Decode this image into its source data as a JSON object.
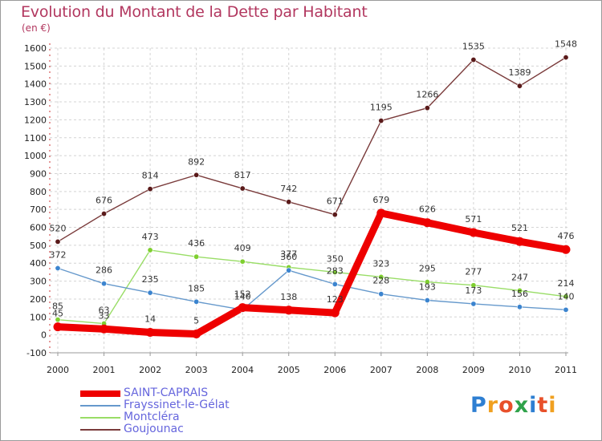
{
  "title": "Evolution du Montant de la Dette par Habitant",
  "unit": "(en €)",
  "logo": [
    {
      "ch": "P",
      "color": "#2e7fd2"
    },
    {
      "ch": "r",
      "color": "#f0a020"
    },
    {
      "ch": "o",
      "color": "#e8502a"
    },
    {
      "ch": "x",
      "color": "#2fa24a"
    },
    {
      "ch": "i",
      "color": "#2e7fd2"
    },
    {
      "ch": "t",
      "color": "#e8502a"
    },
    {
      "ch": "i",
      "color": "#f0a020"
    }
  ],
  "chart_data": {
    "type": "line",
    "x": [
      "2000",
      "2001",
      "2002",
      "2003",
      "2004",
      "2005",
      "2006",
      "2007",
      "2008",
      "2009",
      "2010",
      "2011"
    ],
    "ylim": [
      -100,
      1600
    ],
    "yticks": [
      -100,
      0,
      100,
      200,
      300,
      400,
      500,
      600,
      700,
      800,
      900,
      1000,
      1100,
      1200,
      1300,
      1400,
      1500,
      1600
    ],
    "grid": true,
    "legend_position": "bottom-left",
    "series": [
      {
        "name": "SAINT-CAPRAIS",
        "color": "#ee0000",
        "marker": "#ee0000",
        "width": 9,
        "values": [
          45,
          33,
          14,
          5,
          152,
          138,
          123,
          679,
          626,
          571,
          521,
          476
        ],
        "labels": [
          "45",
          "33",
          "14",
          "5",
          "152",
          "138",
          "123",
          "679",
          "626",
          "571",
          "521",
          "476"
        ],
        "label_dy": [
          -13,
          -13,
          -13,
          -13,
          -13,
          -13,
          -13,
          -13,
          -13,
          -13,
          -13,
          -13
        ]
      },
      {
        "name": "Frayssinet-le-Gélat",
        "color": "#6699cc",
        "marker": "#3b84cf",
        "width": 1.4,
        "values": [
          372,
          286,
          235,
          185,
          140,
          360,
          283,
          228,
          193,
          173,
          156,
          140
        ],
        "labels": [
          "372",
          "286",
          "235",
          "185",
          "140",
          "360",
          "283",
          "228",
          "193",
          "173",
          "156",
          "140"
        ],
        "label_dy": [
          -13,
          -13,
          -13,
          -13,
          -13,
          -13,
          -13,
          -13,
          -13,
          -13,
          -13,
          -13
        ]
      },
      {
        "name": "Montcléra",
        "color": "#99dd66",
        "marker": "#7fcf30",
        "width": 1.4,
        "values": [
          85,
          63,
          473,
          436,
          409,
          377,
          350,
          323,
          295,
          277,
          247,
          214
        ],
        "labels": [
          "85",
          "63",
          "473",
          "436",
          "409",
          "377",
          "350",
          "323",
          "295",
          "277",
          "247",
          "214"
        ],
        "label_dy": [
          -13,
          -13,
          -13,
          -13,
          -13,
          -13,
          -13,
          -13,
          -13,
          -13,
          -13,
          -13
        ]
      },
      {
        "name": "Goujounac",
        "color": "#7a3b3b",
        "marker": "#5a1a1a",
        "width": 1.4,
        "values": [
          520,
          676,
          814,
          892,
          817,
          742,
          671,
          1195,
          1266,
          1535,
          1389,
          1548
        ],
        "labels": [
          "520",
          "676",
          "814",
          "892",
          "817",
          "742",
          "671",
          "1195",
          "1266",
          "1535",
          "1389",
          "1548"
        ],
        "label_dy": [
          -13,
          -13,
          -13,
          -13,
          -13,
          -13,
          -13,
          -13,
          -13,
          -13,
          -13,
          -13
        ]
      }
    ]
  }
}
